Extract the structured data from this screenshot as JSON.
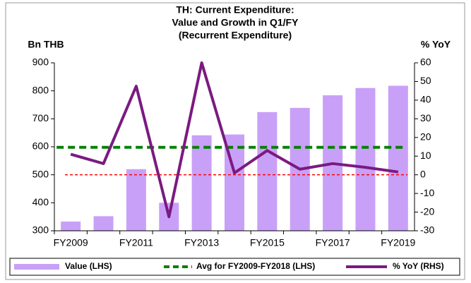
{
  "chart_data": {
    "type": "bar",
    "title": [
      "TH: Current Expenditure:",
      "Value and Growth in Q1/FY",
      "(Recurrent Expenditure)"
    ],
    "y_label": "Bn THB",
    "y2_label": "% YoY",
    "categories": [
      "FY2009",
      null,
      "FY2011",
      null,
      "FY2013",
      null,
      "FY2015",
      null,
      "FY2017",
      null,
      "FY2019"
    ],
    "series": [
      {
        "name": "Value (LHS)",
        "type": "bar",
        "color": "#c9a0f7",
        "values": [
          333,
          352,
          520,
          400,
          641,
          644,
          724,
          739,
          784,
          810,
          818
        ]
      },
      {
        "name": "Avg for FY2009-FY2018 (LHS)",
        "type": "hline",
        "color": "#008000",
        "value": 598
      },
      {
        "name": "% YoY (RHS)",
        "type": "line",
        "axis": "y2",
        "color": "#7b1a80",
        "values": [
          11,
          6,
          47.5,
          -22.5,
          60,
          1,
          13,
          3,
          6,
          4,
          1.5
        ]
      }
    ],
    "reference_line": {
      "value": 0,
      "axis": "y2",
      "color": "#ff0000"
    },
    "ylim": [
      300,
      900
    ],
    "yticks": [
      300,
      400,
      500,
      600,
      700,
      800,
      900
    ],
    "y2lim": [
      -30,
      60
    ],
    "y2ticks": [
      -30,
      -20,
      -10,
      0,
      10,
      20,
      30,
      40,
      50,
      60
    ],
    "grid": false,
    "legend": "bottom"
  }
}
